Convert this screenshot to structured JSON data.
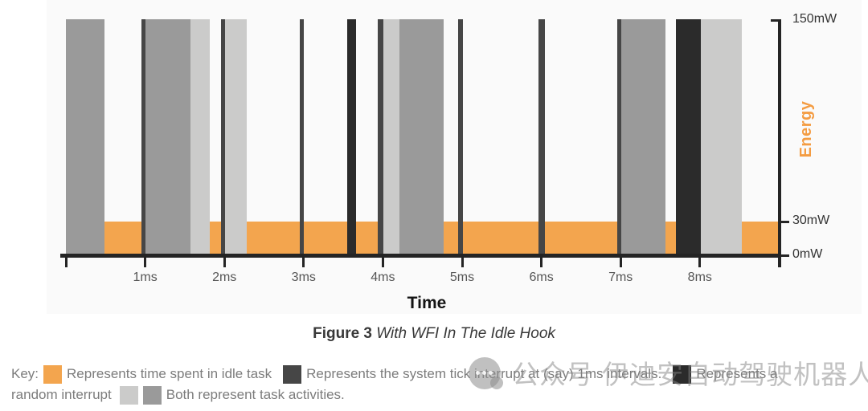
{
  "figure": {
    "label": "Figure 3",
    "title": "With WFI In The Idle Hook"
  },
  "axes": {
    "x_label": "Time",
    "y_label": "Energy"
  },
  "colors": {
    "idle": "#F3A54E",
    "task_medium": "#9A9A9A",
    "task_light": "#CBCBCA",
    "tick_dark": "#464646",
    "random_black": "#2B2B2B",
    "axis": "#242424",
    "x_tick_label": "#555555",
    "y_tick_label": "#333333",
    "energy_label": "#F49C42"
  },
  "chart_data": {
    "type": "bar",
    "title": "",
    "xlabel": "Time",
    "ylabel": "Energy",
    "x_unit": "ms",
    "x_range_ms": [
      0,
      9
    ],
    "y_tick_labels": [
      "150mW",
      "30mW",
      "0mW"
    ],
    "x_tick_labels": [
      "1ms",
      "2ms",
      "3ms",
      "4ms",
      "5ms",
      "6ms",
      "7ms",
      "8ms"
    ],
    "x_ticks": [
      {
        "ms": 0,
        "label": ""
      },
      {
        "ms": 1,
        "label": "1ms"
      },
      {
        "ms": 2,
        "label": "2ms"
      },
      {
        "ms": 3,
        "label": "3ms"
      },
      {
        "ms": 4,
        "label": "4ms"
      },
      {
        "ms": 5,
        "label": "5ms"
      },
      {
        "ms": 6,
        "label": "6ms"
      },
      {
        "ms": 7,
        "label": "7ms"
      },
      {
        "ms": 8,
        "label": "8ms"
      }
    ],
    "y_ticks": [
      {
        "label": "150mW",
        "value": 150
      },
      {
        "label": "30mW",
        "value": 30
      },
      {
        "label": "0mW",
        "value": 0
      }
    ],
    "idle_band": {
      "meaning": "time spent in idle task",
      "from_ms": 0.49,
      "to_ms": 9.0,
      "level_mW": 30,
      "color_key": "idle"
    },
    "bars": [
      {
        "from_ms": 0.0,
        "to_ms": 0.49,
        "peak_mW": 150,
        "kind": "task-activity",
        "color_key": "task_medium"
      },
      {
        "from_ms": 0.95,
        "to_ms": 1.0,
        "peak_mW": 150,
        "kind": "system-tick-interrupt",
        "color_key": "tick_dark"
      },
      {
        "from_ms": 1.0,
        "to_ms": 1.57,
        "peak_mW": 150,
        "kind": "task-activity",
        "color_key": "task_medium"
      },
      {
        "from_ms": 1.57,
        "to_ms": 1.82,
        "peak_mW": 150,
        "kind": "task-activity",
        "color_key": "task_light"
      },
      {
        "from_ms": 1.96,
        "to_ms": 2.01,
        "peak_mW": 150,
        "kind": "system-tick-interrupt",
        "color_key": "tick_dark"
      },
      {
        "from_ms": 2.01,
        "to_ms": 2.28,
        "peak_mW": 150,
        "kind": "task-activity",
        "color_key": "task_light"
      },
      {
        "from_ms": 2.95,
        "to_ms": 3.0,
        "peak_mW": 150,
        "kind": "system-tick-interrupt",
        "color_key": "tick_dark"
      },
      {
        "from_ms": 3.55,
        "to_ms": 3.66,
        "peak_mW": 150,
        "kind": "random-interrupt",
        "color_key": "random_black"
      },
      {
        "from_ms": 3.94,
        "to_ms": 4.01,
        "peak_mW": 150,
        "kind": "system-tick-interrupt",
        "color_key": "tick_dark"
      },
      {
        "from_ms": 4.01,
        "to_ms": 4.21,
        "peak_mW": 150,
        "kind": "task-activity",
        "color_key": "task_light"
      },
      {
        "from_ms": 4.21,
        "to_ms": 4.77,
        "peak_mW": 150,
        "kind": "task-activity",
        "color_key": "task_medium"
      },
      {
        "from_ms": 4.95,
        "to_ms": 5.01,
        "peak_mW": 150,
        "kind": "system-tick-interrupt",
        "color_key": "tick_dark"
      },
      {
        "from_ms": 5.96,
        "to_ms": 6.04,
        "peak_mW": 150,
        "kind": "system-tick-interrupt",
        "color_key": "tick_dark"
      },
      {
        "from_ms": 6.96,
        "to_ms": 7.01,
        "peak_mW": 150,
        "kind": "system-tick-interrupt",
        "color_key": "tick_dark"
      },
      {
        "from_ms": 7.01,
        "to_ms": 7.57,
        "peak_mW": 150,
        "kind": "task-activity",
        "color_key": "task_medium"
      },
      {
        "from_ms": 7.7,
        "to_ms": 8.01,
        "peak_mW": 150,
        "kind": "random-interrupt",
        "color_key": "random_black"
      },
      {
        "from_ms": 8.01,
        "to_ms": 8.53,
        "peak_mW": 150,
        "kind": "task-activity",
        "color_key": "task_light"
      }
    ]
  },
  "key": {
    "label": "Key:",
    "idle_text": "Represents time spent in idle task",
    "tick_text": "Represents the system tick interrupt at (say) 1ms intervals.",
    "random_text_line1": "Represents a",
    "random_text_line2": "random interrupt",
    "task_text": "Both represent task activities."
  },
  "watermark": {
    "icon": "wechat-chat-bubbles-icon",
    "text": "公众号 伊迪安自动驾驶机器人"
  }
}
